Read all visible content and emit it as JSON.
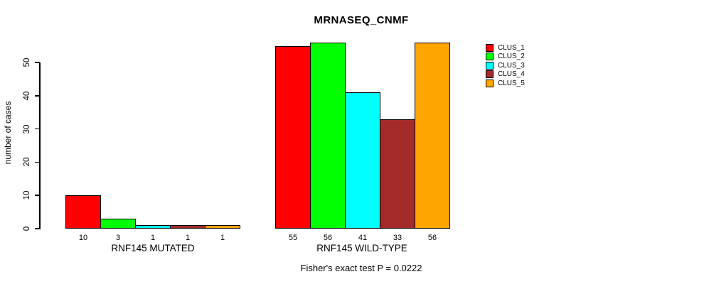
{
  "chart_data": {
    "type": "bar",
    "title": "MRNASEQ_CNMF",
    "ylabel": "number of cases",
    "xlabel": "",
    "ylim": [
      0,
      56
    ],
    "yticks": [
      0,
      10,
      20,
      30,
      40,
      50
    ],
    "grid": false,
    "legend_position": "top-right",
    "bar_value_labels_shown": true,
    "categories": [
      "RNF145 MUTATED",
      "RNF145 WILD-TYPE"
    ],
    "series": [
      {
        "name": "CLUS_1",
        "color": "#FF0000",
        "values": [
          10,
          55
        ]
      },
      {
        "name": "CLUS_2",
        "color": "#00FF00",
        "values": [
          3,
          56
        ]
      },
      {
        "name": "CLUS_3",
        "color": "#00FFFF",
        "values": [
          1,
          41
        ]
      },
      {
        "name": "CLUS_4",
        "color": "#A52A2A",
        "values": [
          1,
          33
        ]
      },
      {
        "name": "CLUS_5",
        "color": "#FFA500",
        "values": [
          1,
          56
        ]
      }
    ],
    "footnote": "Fisher's exact test P = 0.0222"
  },
  "colors": {
    "background": "#FFFFFF",
    "axis": "#000000",
    "text": "#000000"
  }
}
